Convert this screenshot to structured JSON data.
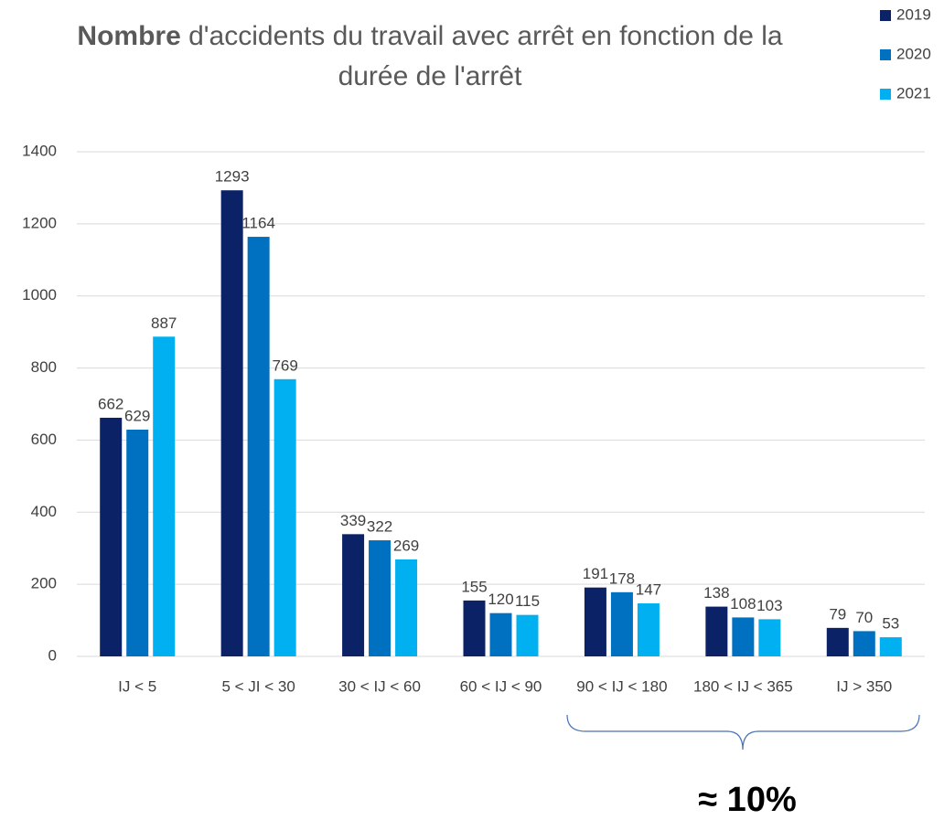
{
  "chart_data": {
    "type": "bar",
    "title_bold": "Nombre",
    "title": "d'accidents du travail avec arrêt en fonction de la durée de l'arrêt",
    "categories": [
      "IJ < 5",
      "5 < JI < 30",
      "30 < IJ < 60",
      "60 < IJ < 90",
      "90 < IJ < 180",
      "180 < IJ < 365",
      "IJ > 350"
    ],
    "series": [
      {
        "name": "2019",
        "color": "#0b2366",
        "values": [
          662,
          1293,
          339,
          155,
          191,
          138,
          79
        ]
      },
      {
        "name": "2020",
        "color": "#0070c0",
        "values": [
          629,
          1164,
          322,
          120,
          178,
          108,
          70
        ]
      },
      {
        "name": "2021",
        "color": "#00b0f0",
        "values": [
          887,
          769,
          269,
          115,
          147,
          103,
          53
        ]
      }
    ],
    "ylim": [
      0,
      1400
    ],
    "yticks": [
      0,
      200,
      400,
      600,
      800,
      1000,
      1200,
      1400
    ],
    "grid": true,
    "legend": "top-right",
    "annotation": "≈ 10%"
  }
}
